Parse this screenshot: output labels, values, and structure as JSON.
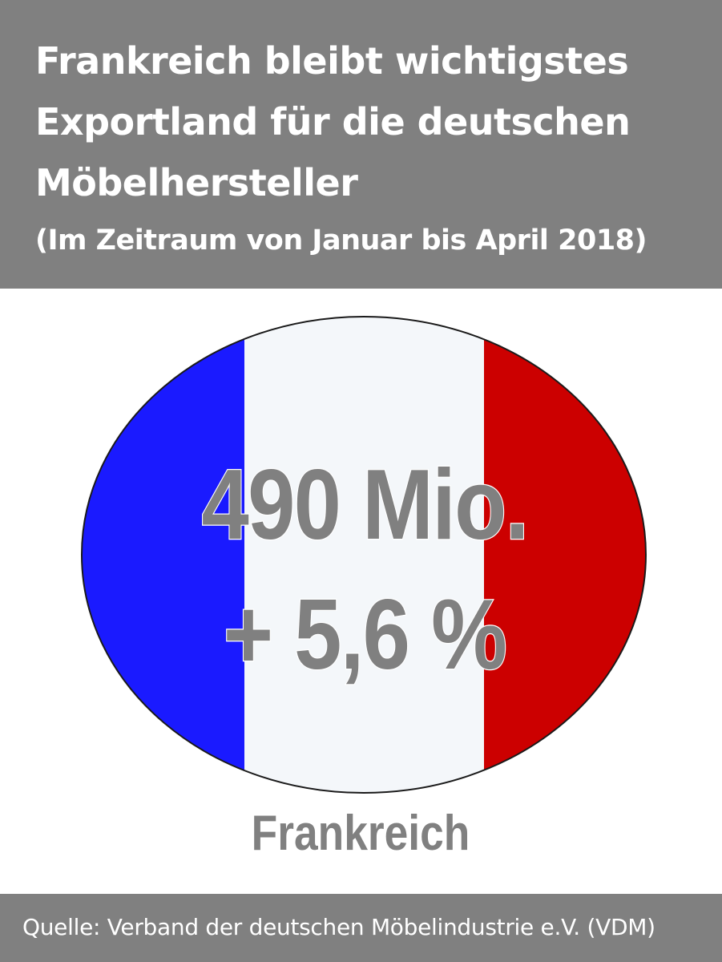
{
  "header": {
    "title_lines": [
      "Frankreich bleibt wichtigstes",
      "Exportland für die deutschen",
      "Möbelhersteller"
    ],
    "subtitle": "(Im Zeitraum von Januar bis April 2018)"
  },
  "figure": {
    "value": "490 Mio.",
    "change": "+ 5,6 %",
    "country": "Frankreich"
  },
  "flag_colors": {
    "blue": "#1a1aff",
    "white": "#f4f7fa",
    "red": "#cc0000"
  },
  "footer": {
    "source": "Quelle: Verband der deutschen Möbelindustrie e.V. (VDM)"
  },
  "colors": {
    "header_bg": "#808080",
    "text_gray": "#808080"
  }
}
